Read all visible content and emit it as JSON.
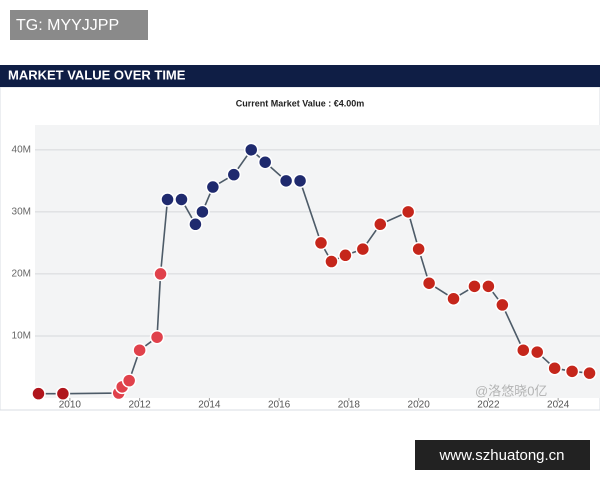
{
  "overlays": {
    "top_tag": "TG: MYYJJPP",
    "bottom_tag": "www.szhuatong.cn",
    "faint_mark": "@洛悠晓0亿"
  },
  "chart_data": {
    "type": "line",
    "title": "MARKET VALUE OVER TIME",
    "subtitle": "Current Market Value : €4.00m",
    "x": [
      2009.1,
      2009.8,
      2011.4,
      2011.5,
      2011.7,
      2012.0,
      2012.5,
      2012.6,
      2012.8,
      2013.2,
      2013.6,
      2013.8,
      2014.1,
      2014.7,
      2015.2,
      2015.6,
      2016.2,
      2016.6,
      2017.2,
      2017.5,
      2017.9,
      2018.4,
      2018.9,
      2019.7,
      2020.0,
      2020.3,
      2021.0,
      2021.6,
      2022.0,
      2022.4,
      2023.0,
      2023.4,
      2023.9,
      2024.4,
      2024.9
    ],
    "series": [
      {
        "color": "#4d5b68",
        "values": [
          0.7,
          0.7,
          0.8,
          1.8,
          2.8,
          7.7,
          9.8,
          20,
          32,
          32,
          28,
          30,
          34,
          36,
          40,
          38,
          35,
          35,
          25,
          22,
          23,
          24,
          28,
          30,
          24,
          18.5,
          16,
          18,
          18,
          15,
          7.7,
          7.4,
          4.8,
          4.3,
          4
        ]
      }
    ],
    "point_colors": [
      "#b0151c",
      "#b0151c",
      "#e0414b",
      "#e0414b",
      "#e0414b",
      "#e0414b",
      "#e0414b",
      "#e0414b",
      "#1f2a6e",
      "#1f2a6e",
      "#1f2a6e",
      "#1f2a6e",
      "#1f2a6e",
      "#1f2a6e",
      "#1f2a6e",
      "#1f2a6e",
      "#1f2a6e",
      "#1f2a6e",
      "#c5261b",
      "#c5261b",
      "#c5261b",
      "#c5261b",
      "#c5261b",
      "#c5261b",
      "#c5261b",
      "#c5261b",
      "#c5261b",
      "#c5261b",
      "#c5261b",
      "#c5261b",
      "#c5261b",
      "#c5261b",
      "#c5261b",
      "#c5261b",
      "#c5261b"
    ],
    "xlim": [
      2009,
      2025.2
    ],
    "xticks": [
      2010,
      2012,
      2014,
      2016,
      2018,
      2020,
      2022,
      2024
    ],
    "ylim": [
      0,
      44
    ],
    "yticks": [
      {
        "value": 10,
        "label": "10M"
      },
      {
        "value": 20,
        "label": "20M"
      },
      {
        "value": 30,
        "label": "30M"
      },
      {
        "value": 40,
        "label": "40M"
      }
    ],
    "grid": true
  }
}
